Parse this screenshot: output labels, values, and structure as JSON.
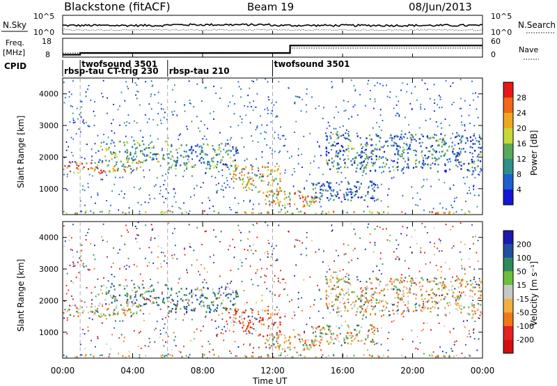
{
  "header": {
    "radar": "Blackstone (fitACF)",
    "beam": "Beam 19",
    "date": "08/Jun/2013"
  },
  "noise_panel": {
    "left_label": "N.Sky",
    "right_label": "N.Search",
    "left_ticks": [
      "10^5",
      "10^0"
    ],
    "right_ticks": [
      "10^5",
      "10^0"
    ]
  },
  "freq_panel": {
    "left_label_line1": "Freq.",
    "left_label_line2": "[MHz]",
    "right_label": "Nave",
    "left_ticks": [
      "18",
      "8"
    ],
    "right_ticks": [
      "60",
      "0"
    ]
  },
  "cpid": {
    "label": "CPID",
    "modes": [
      {
        "name": "rbsp-tau CT-trig 230",
        "start": 0.0,
        "end": 6.0,
        "row": 1
      },
      {
        "name": "twofsound 3501",
        "start": 1.0,
        "end": 6.0,
        "row": 0
      },
      {
        "name": "rbsp-tau 210",
        "start": 6.0,
        "end": 12.0,
        "row": 1
      },
      {
        "name": "twofsound 3501",
        "start": 12.0,
        "end": 24.0,
        "row": 0
      }
    ]
  },
  "axes": {
    "ylabel": "Slant Range [km]",
    "xlabel": "Time UT",
    "yticks": [
      "1000",
      "2000",
      "3000",
      "4000"
    ],
    "xticks": [
      "00:00",
      "04:00",
      "08:00",
      "12:00",
      "16:00",
      "20:00",
      "00:00"
    ]
  },
  "power_scale": {
    "title": "Power [dB]",
    "labels": [
      "4",
      "8",
      "12",
      "16",
      "20",
      "24",
      "28"
    ],
    "colors": [
      "#1515d8",
      "#1f5fd0",
      "#2f8f8a",
      "#5aa85a",
      "#c8d838",
      "#f0a820",
      "#f06818",
      "#e81818"
    ]
  },
  "velocity_scale": {
    "title": "Velocity [m s⁻¹]",
    "labels": [
      "200",
      "100",
      "50",
      "15",
      "-15",
      "-50",
      "-100",
      "-200"
    ],
    "colors": [
      "#1a1ab0",
      "#2050a0",
      "#2f8a5a",
      "#6cc03c",
      "#c8c8c8",
      "#f0b040",
      "#f07818",
      "#e82020",
      "#d01010"
    ]
  },
  "chart_data": {
    "type": "heatmap",
    "x_range_hours": [
      0,
      24
    ],
    "y_range_km": [
      180,
      4500
    ],
    "panels": [
      "power",
      "velocity"
    ],
    "power_db_range": [
      0,
      30
    ],
    "velocity_range": [
      -250,
      250
    ],
    "echo_regions": [
      {
        "t": [
          0.0,
          2.5
        ],
        "r": [
          1450,
          1800
        ],
        "power": 22,
        "velocity": -10
      },
      {
        "t": [
          2.5,
          4.5
        ],
        "r": [
          1500,
          1900
        ],
        "power": 18,
        "velocity": -5
      },
      {
        "t": [
          2.0,
          6.0
        ],
        "r": [
          1800,
          2500
        ],
        "power": 12,
        "velocity": 40
      },
      {
        "t": [
          6.0,
          10.0
        ],
        "r": [
          1600,
          2400
        ],
        "power": 10,
        "velocity": 60
      },
      {
        "t": [
          9.5,
          12.5
        ],
        "r": [
          800,
          1700
        ],
        "power": 18,
        "velocity": -60
      },
      {
        "t": [
          11.5,
          14.5
        ],
        "r": [
          400,
          900
        ],
        "power": 20,
        "velocity": -20
      },
      {
        "t": [
          14.0,
          18.0
        ],
        "r": [
          600,
          1200
        ],
        "power": 6,
        "velocity": 0
      },
      {
        "t": [
          15.0,
          24.0
        ],
        "r": [
          1500,
          2700
        ],
        "power": 8,
        "velocity": -5
      },
      {
        "t": [
          0.0,
          24.0
        ],
        "r": [
          180,
          260
        ],
        "power": 20,
        "velocity": 0
      }
    ]
  }
}
